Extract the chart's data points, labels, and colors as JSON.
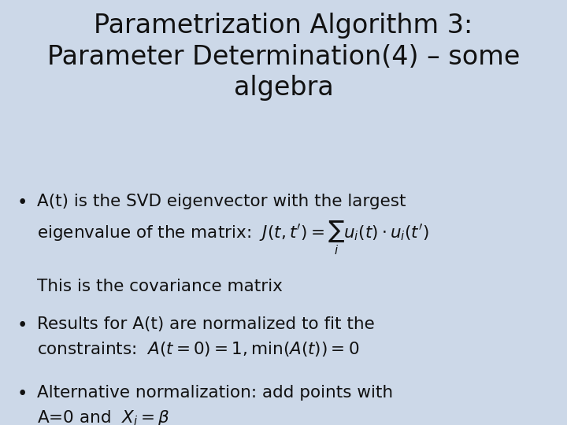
{
  "background_color": "#ccd8e8",
  "title_lines": [
    "Parametrization Algorithm 3:",
    "Parameter Determination(4) – some",
    "algebra"
  ],
  "title_fontsize": 24,
  "title_color": "#111111",
  "body_fontsize": 15.5,
  "body_color": "#111111",
  "fig_width": 7.2,
  "fig_height": 5.4,
  "fig_dpi": 100
}
